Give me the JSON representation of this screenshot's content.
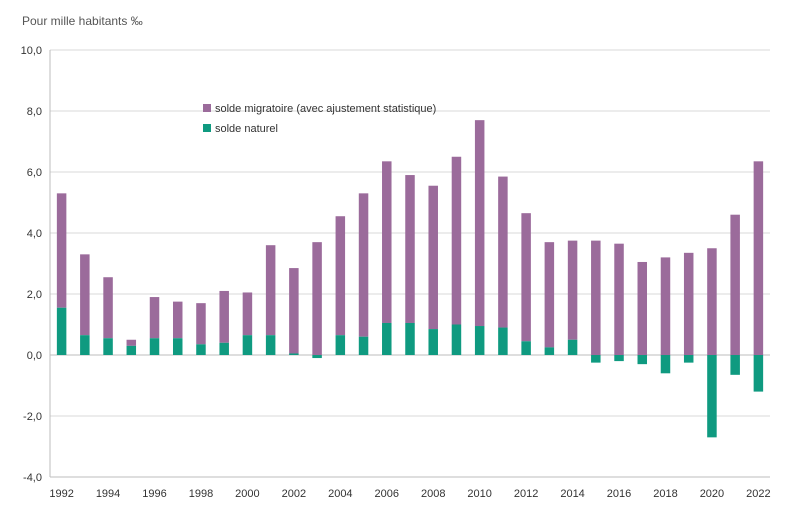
{
  "chart_data": {
    "type": "bar",
    "stacked": true,
    "ylabel": "Pour mille habitants ‰",
    "ylim": [
      -4,
      10
    ],
    "yticks": [
      "-4,0",
      "-2,0",
      "0,0",
      "2,0",
      "4,0",
      "6,0",
      "8,0",
      "10,0"
    ],
    "ytick_values": [
      -4,
      -2,
      0,
      2,
      4,
      6,
      8,
      10
    ],
    "grid": "horizontal",
    "legend_position": "upper-left-inside",
    "categories": [
      1992,
      1993,
      1994,
      1995,
      1996,
      1997,
      1998,
      1999,
      2000,
      2001,
      2002,
      2003,
      2004,
      2005,
      2006,
      2007,
      2008,
      2009,
      2010,
      2011,
      2012,
      2013,
      2014,
      2015,
      2016,
      2017,
      2018,
      2019,
      2020,
      2021,
      2022
    ],
    "xtick_labels": [
      "1992",
      "1994",
      "1996",
      "1998",
      "2000",
      "2002",
      "2004",
      "2006",
      "2008",
      "2010",
      "2012",
      "2014",
      "2016",
      "2018",
      "2020",
      "2022"
    ],
    "series": [
      {
        "name": "solde naturel",
        "color": "#0f9a80",
        "values": [
          1.55,
          0.65,
          0.55,
          0.3,
          0.55,
          0.55,
          0.35,
          0.4,
          0.65,
          0.65,
          0.05,
          -0.1,
          0.65,
          0.6,
          1.05,
          1.05,
          0.85,
          1.0,
          0.95,
          0.9,
          0.45,
          0.25,
          0.5,
          -0.25,
          -0.2,
          -0.3,
          -0.6,
          -0.25,
          -2.7,
          -0.65,
          -1.2
        ]
      },
      {
        "name": "solde migratoire (avec ajustement statistique)",
        "color": "#9b6b9b",
        "values": [
          3.75,
          2.65,
          2.0,
          0.2,
          1.35,
          1.2,
          1.35,
          1.7,
          1.4,
          2.95,
          2.8,
          3.7,
          3.9,
          4.7,
          5.3,
          4.85,
          4.7,
          5.5,
          6.75,
          4.95,
          4.2,
          3.45,
          3.25,
          3.75,
          3.65,
          3.05,
          3.2,
          3.35,
          3.5,
          4.6,
          6.35
        ]
      }
    ]
  }
}
